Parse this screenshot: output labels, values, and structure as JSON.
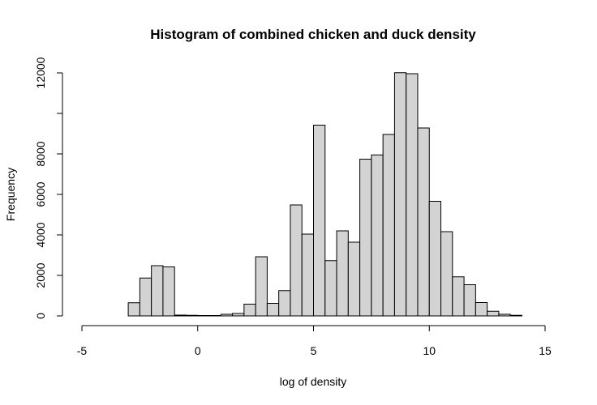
{
  "chart_data": {
    "type": "bar",
    "title": "Histogram of combined chicken and duck density",
    "xlabel": "log of density",
    "ylabel": "Frequency",
    "xlim": [
      -5,
      15
    ],
    "ylim": [
      0,
      12000
    ],
    "x_ticks": [
      -5,
      0,
      5,
      10,
      15
    ],
    "y_ticks": [
      0,
      2000,
      4000,
      6000,
      8000,
      10000,
      12000
    ],
    "y_tick_labels": [
      "0",
      "2000",
      "4000",
      "6000",
      "8000",
      "",
      "12000"
    ],
    "bin_width": 0.5,
    "bins": [
      {
        "x0": -3.0,
        "x1": -2.5,
        "count": 650
      },
      {
        "x0": -2.5,
        "x1": -2.0,
        "count": 1870
      },
      {
        "x0": -2.0,
        "x1": -1.5,
        "count": 2480
      },
      {
        "x0": -1.5,
        "x1": -1.0,
        "count": 2420
      },
      {
        "x0": -1.0,
        "x1": -0.5,
        "count": 40
      },
      {
        "x0": -0.5,
        "x1": 0.0,
        "count": 30
      },
      {
        "x0": 0.0,
        "x1": 0.5,
        "count": 20
      },
      {
        "x0": 0.5,
        "x1": 1.0,
        "count": 20
      },
      {
        "x0": 1.0,
        "x1": 1.5,
        "count": 80
      },
      {
        "x0": 1.5,
        "x1": 2.0,
        "count": 120
      },
      {
        "x0": 2.0,
        "x1": 2.5,
        "count": 580
      },
      {
        "x0": 2.5,
        "x1": 3.0,
        "count": 2920
      },
      {
        "x0": 3.0,
        "x1": 3.5,
        "count": 620
      },
      {
        "x0": 3.5,
        "x1": 4.0,
        "count": 1250
      },
      {
        "x0": 4.0,
        "x1": 4.5,
        "count": 5480
      },
      {
        "x0": 4.5,
        "x1": 5.0,
        "count": 4040
      },
      {
        "x0": 5.0,
        "x1": 5.5,
        "count": 9420
      },
      {
        "x0": 5.5,
        "x1": 6.0,
        "count": 2730
      },
      {
        "x0": 6.0,
        "x1": 6.5,
        "count": 4200
      },
      {
        "x0": 6.5,
        "x1": 7.0,
        "count": 3640
      },
      {
        "x0": 7.0,
        "x1": 7.5,
        "count": 7740
      },
      {
        "x0": 7.5,
        "x1": 8.0,
        "count": 7950
      },
      {
        "x0": 8.0,
        "x1": 8.5,
        "count": 8960
      },
      {
        "x0": 8.5,
        "x1": 9.0,
        "count": 12010
      },
      {
        "x0": 9.0,
        "x1": 9.5,
        "count": 11960
      },
      {
        "x0": 9.5,
        "x1": 10.0,
        "count": 9280
      },
      {
        "x0": 10.0,
        "x1": 10.5,
        "count": 5660
      },
      {
        "x0": 10.5,
        "x1": 11.0,
        "count": 4160
      },
      {
        "x0": 11.0,
        "x1": 11.5,
        "count": 1930
      },
      {
        "x0": 11.5,
        "x1": 12.0,
        "count": 1540
      },
      {
        "x0": 12.0,
        "x1": 12.5,
        "count": 660
      },
      {
        "x0": 12.5,
        "x1": 13.0,
        "count": 230
      },
      {
        "x0": 13.0,
        "x1": 13.5,
        "count": 80
      },
      {
        "x0": 13.5,
        "x1": 14.0,
        "count": 30
      }
    ]
  }
}
